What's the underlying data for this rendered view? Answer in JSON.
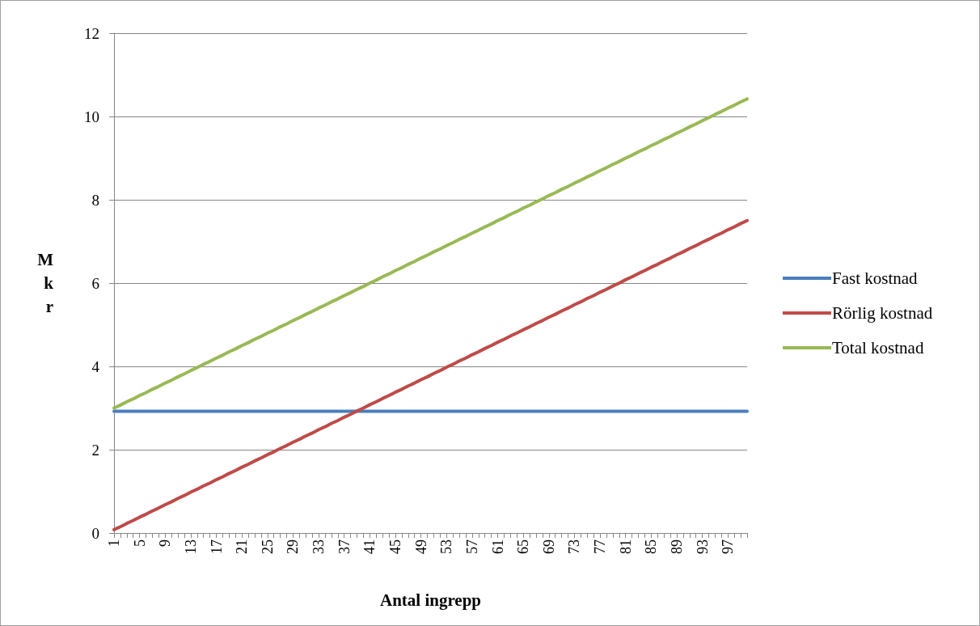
{
  "chart_data": {
    "type": "line",
    "xlabel": "Antal ingrepp",
    "ylabel": "Mkr",
    "categories": [
      "1",
      null,
      null,
      null,
      "5",
      null,
      null,
      null,
      "9",
      null,
      null,
      null,
      "13",
      null,
      null,
      null,
      "17",
      null,
      null,
      null,
      "21",
      null,
      null,
      null,
      "25",
      null,
      null,
      null,
      "29",
      null,
      null,
      null,
      "33",
      null,
      null,
      null,
      "37",
      null,
      null,
      null,
      "41",
      null,
      null,
      null,
      "45",
      null,
      null,
      null,
      "49",
      null,
      null,
      null,
      "53",
      null,
      null,
      null,
      "57",
      null,
      null,
      null,
      "61",
      null,
      null,
      null,
      "65",
      null,
      null,
      null,
      "69",
      null,
      null,
      null,
      "73",
      null,
      null,
      null,
      "77",
      null,
      null,
      null,
      "81",
      null,
      null,
      null,
      "85",
      null,
      null,
      null,
      "89",
      null,
      null,
      null,
      "93",
      null,
      null,
      null,
      "97",
      null,
      null,
      null
    ],
    "series": [
      {
        "name": "Fast kostnad",
        "color": "#4a7ebb",
        "values": [
          2.92,
          2.92,
          2.92,
          2.92,
          2.92,
          2.92,
          2.92,
          2.92,
          2.92,
          2.92,
          2.92,
          2.92,
          2.92,
          2.92,
          2.92,
          2.92,
          2.92,
          2.92,
          2.92,
          2.92,
          2.92,
          2.92,
          2.92,
          2.92,
          2.92,
          2.92,
          2.92,
          2.92,
          2.92,
          2.92,
          2.92,
          2.92,
          2.92,
          2.92,
          2.92,
          2.92,
          2.92,
          2.92,
          2.92,
          2.92,
          2.92,
          2.92,
          2.92,
          2.92,
          2.92,
          2.92,
          2.92,
          2.92,
          2.92,
          2.92,
          2.92,
          2.92,
          2.92,
          2.92,
          2.92,
          2.92,
          2.92,
          2.92,
          2.92,
          2.92,
          2.92,
          2.92,
          2.92,
          2.92,
          2.92,
          2.92,
          2.92,
          2.92,
          2.92,
          2.92,
          2.92,
          2.92,
          2.92,
          2.92,
          2.92,
          2.92,
          2.92,
          2.92,
          2.92,
          2.92,
          2.92,
          2.92,
          2.92,
          2.92,
          2.92,
          2.92,
          2.92,
          2.92,
          2.92,
          2.92,
          2.92,
          2.92,
          2.92,
          2.92,
          2.92,
          2.92,
          2.92,
          2.92,
          2.92,
          2.92
        ]
      },
      {
        "name": "Rörlig kostnad",
        "color": "#be4b48",
        "values": [
          0.08,
          0.15,
          0.23,
          0.3,
          0.38,
          0.45,
          0.53,
          0.6,
          0.68,
          0.75,
          0.83,
          0.9,
          0.98,
          1.05,
          1.13,
          1.2,
          1.28,
          1.35,
          1.43,
          1.5,
          1.58,
          1.65,
          1.73,
          1.8,
          1.88,
          1.95,
          2.03,
          2.1,
          2.18,
          2.25,
          2.33,
          2.4,
          2.48,
          2.55,
          2.63,
          2.7,
          2.78,
          2.85,
          2.93,
          3,
          3.08,
          3.15,
          3.23,
          3.3,
          3.38,
          3.45,
          3.53,
          3.6,
          3.68,
          3.75,
          3.83,
          3.9,
          3.98,
          4.05,
          4.13,
          4.2,
          4.28,
          4.35,
          4.43,
          4.5,
          4.58,
          4.65,
          4.73,
          4.8,
          4.88,
          4.95,
          5.03,
          5.1,
          5.18,
          5.25,
          5.33,
          5.4,
          5.48,
          5.55,
          5.63,
          5.7,
          5.78,
          5.85,
          5.93,
          6,
          6.08,
          6.15,
          6.23,
          6.3,
          6.38,
          6.45,
          6.53,
          6.6,
          6.68,
          6.75,
          6.83,
          6.9,
          6.98,
          7.05,
          7.13,
          7.2,
          7.28,
          7.35,
          7.43,
          7.5
        ]
      },
      {
        "name": "Total kostnad",
        "color": "#98b954",
        "values": [
          3,
          3.07,
          3.15,
          3.22,
          3.3,
          3.37,
          3.45,
          3.52,
          3.6,
          3.67,
          3.75,
          3.82,
          3.9,
          3.97,
          4.05,
          4.12,
          4.2,
          4.27,
          4.35,
          4.42,
          4.5,
          4.57,
          4.65,
          4.72,
          4.8,
          4.87,
          4.95,
          5.02,
          5.1,
          5.17,
          5.25,
          5.32,
          5.4,
          5.47,
          5.55,
          5.62,
          5.7,
          5.77,
          5.85,
          5.92,
          6,
          6.07,
          6.15,
          6.22,
          6.3,
          6.37,
          6.45,
          6.52,
          6.6,
          6.67,
          6.75,
          6.82,
          6.9,
          6.97,
          7.05,
          7.12,
          7.2,
          7.27,
          7.35,
          7.42,
          7.5,
          7.57,
          7.65,
          7.72,
          7.8,
          7.87,
          7.95,
          8.02,
          8.1,
          8.17,
          8.25,
          8.32,
          8.4,
          8.47,
          8.55,
          8.62,
          8.7,
          8.77,
          8.85,
          8.92,
          9,
          9.07,
          9.15,
          9.22,
          9.3,
          9.37,
          9.45,
          9.52,
          9.6,
          9.67,
          9.75,
          9.82,
          9.9,
          9.97,
          10.05,
          10.12,
          10.2,
          10.27,
          10.35,
          10.42
        ]
      }
    ],
    "ylim": [
      0,
      12
    ],
    "yticks": [
      0,
      2,
      4,
      6,
      8,
      10,
      12
    ],
    "grid": "y",
    "legend": "right",
    "marker": "none",
    "line_style": "solid"
  }
}
